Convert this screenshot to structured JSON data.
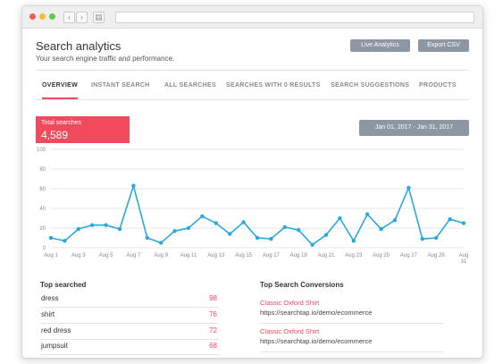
{
  "header": {
    "title": "Search analytics",
    "subtitle": "Your search engine traffic and performance.",
    "live_analytics_label": "Live Analytics",
    "export_csv_label": "Export CSV"
  },
  "tabs": [
    {
      "label": "OVERVIEW",
      "active": true
    },
    {
      "label": "INSTANT SEARCH",
      "active": false
    },
    {
      "label": "ALL SEARCHES",
      "active": false
    },
    {
      "label": "SEARCHES WITH 0 RESULTS",
      "active": false
    },
    {
      "label": "SEARCH SUGGESTIONS",
      "active": false
    },
    {
      "label": "PRODUCTS",
      "active": false
    }
  ],
  "summary": {
    "total_label": "Total searches",
    "total_value": "4,589",
    "date_range": "Jan 01, 2017 - Jan 31, 2017"
  },
  "colors": {
    "accent": "#f2495c",
    "line": "#29a8e0",
    "button": "#8c97a3"
  },
  "chart_data": {
    "type": "line",
    "title": "",
    "xlabel": "",
    "ylabel": "",
    "ylim": [
      0,
      100
    ],
    "yticks": [
      0,
      20,
      40,
      60,
      80,
      100
    ],
    "grid": true,
    "x_tick_labels": [
      "Aug 1",
      "Aug 3",
      "Aug 5",
      "Aug 7",
      "Aug 9",
      "Aug 11",
      "Aug 13",
      "Aug 15",
      "Aug 17",
      "Aug 19",
      "Aug 21",
      "Aug 23",
      "Aug 25",
      "Aug 27",
      "Aug 29",
      "Aug 31"
    ],
    "x": [
      1,
      2,
      3,
      4,
      5,
      6,
      7,
      8,
      9,
      10,
      11,
      12,
      13,
      14,
      15,
      16,
      17,
      18,
      19,
      20,
      21,
      22,
      23,
      24,
      25,
      26,
      27,
      28,
      29,
      30,
      31
    ],
    "series": [
      {
        "values": [
          10,
          7,
          19,
          23,
          23,
          19,
          63,
          10,
          5,
          17,
          20,
          32,
          25,
          14,
          26,
          10,
          9,
          21,
          18,
          3,
          13,
          30,
          7,
          34,
          19,
          28,
          61,
          9,
          10,
          29,
          25
        ]
      }
    ]
  },
  "top_searched": {
    "title": "Top searched",
    "items": [
      {
        "term": "dress",
        "count": "98"
      },
      {
        "term": "shirt",
        "count": "76"
      },
      {
        "term": "red dress",
        "count": "72"
      },
      {
        "term": "jumpsuit",
        "count": "68"
      }
    ]
  },
  "top_conversions": {
    "title": "Top Search Conversions",
    "items": [
      {
        "name": "Classic Oxford Shirt",
        "url": "https://searchtap.io/demo/ecommerce"
      },
      {
        "name": "Classic Oxford Shirt",
        "url": "https://searchtap.io/demo/ecommerce"
      }
    ]
  }
}
